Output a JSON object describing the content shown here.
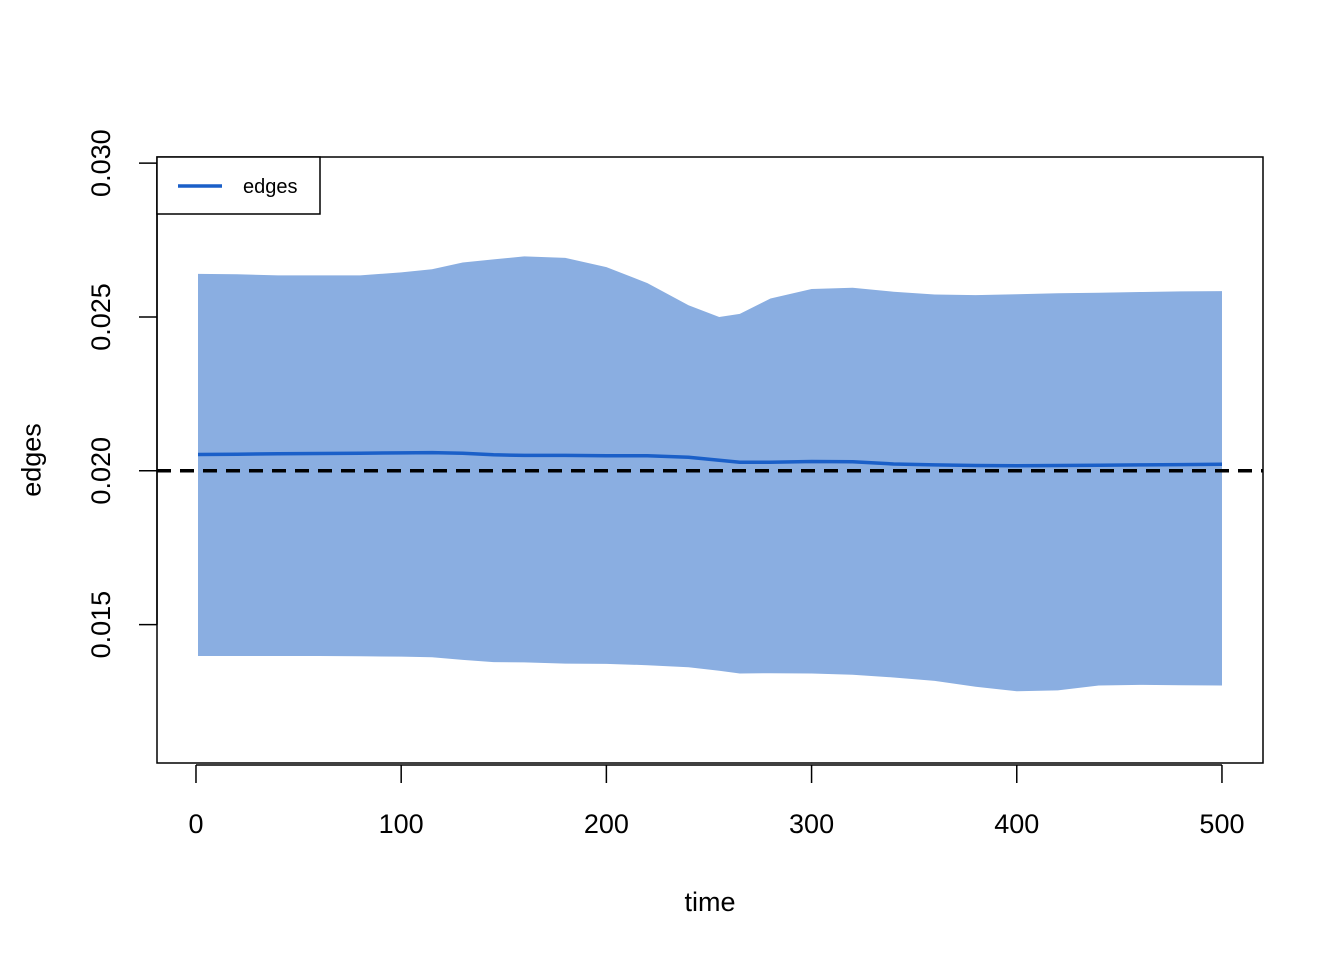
{
  "chart_data": {
    "type": "area",
    "xlabel": "time",
    "ylabel": "edges",
    "xlim": [
      -19,
      520
    ],
    "ylim": [
      0.0105,
      0.0302
    ],
    "x_ticks": [
      0,
      100,
      200,
      300,
      400,
      500
    ],
    "y_ticks": [
      0.015,
      0.02,
      0.025,
      0.03
    ],
    "x_tick_labels": [
      "0",
      "100",
      "200",
      "300",
      "400",
      "500"
    ],
    "y_tick_labels": [
      "0.015",
      "0.020",
      "0.025",
      "0.030"
    ],
    "grid": false,
    "legend": {
      "position": "top-left",
      "entries": [
        "edges"
      ]
    },
    "reference_line": {
      "y": 0.02,
      "style": "dashed",
      "color": "#000000"
    },
    "colors": {
      "line": "#1a5fc8",
      "band": "#8aaee1",
      "axis": "#000000"
    },
    "series": [
      {
        "name": "edges",
        "x": [
          1,
          20,
          40,
          60,
          80,
          100,
          115,
          130,
          145,
          160,
          180,
          200,
          220,
          240,
          255,
          265,
          280,
          300,
          320,
          340,
          360,
          380,
          400,
          420,
          440,
          460,
          480,
          500
        ],
        "mean": [
          0.02053,
          0.02054,
          0.02055,
          0.02056,
          0.02057,
          0.02058,
          0.02059,
          0.02057,
          0.02052,
          0.0205,
          0.0205,
          0.02049,
          0.02049,
          0.02044,
          0.02034,
          0.02028,
          0.02028,
          0.0203,
          0.02029,
          0.02022,
          0.02019,
          0.02017,
          0.02016,
          0.02017,
          0.02018,
          0.02019,
          0.0202,
          0.02021
        ],
        "upper": [
          0.0264,
          0.02639,
          0.02635,
          0.02635,
          0.02635,
          0.02645,
          0.02655,
          0.02677,
          0.02687,
          0.02697,
          0.02692,
          0.02662,
          0.0261,
          0.02538,
          0.025,
          0.0251,
          0.0256,
          0.02591,
          0.02595,
          0.02582,
          0.02573,
          0.02571,
          0.02574,
          0.02577,
          0.02579,
          0.02581,
          0.02583,
          0.02584
        ],
        "lower": [
          0.01398,
          0.01398,
          0.01398,
          0.01398,
          0.01397,
          0.01396,
          0.01394,
          0.01385,
          0.01378,
          0.01377,
          0.01373,
          0.01372,
          0.01368,
          0.01361,
          0.0135,
          0.01341,
          0.01342,
          0.01341,
          0.01337,
          0.01328,
          0.01317,
          0.01298,
          0.01283,
          0.01286,
          0.01302,
          0.01304,
          0.01303,
          0.01302
        ]
      }
    ]
  }
}
